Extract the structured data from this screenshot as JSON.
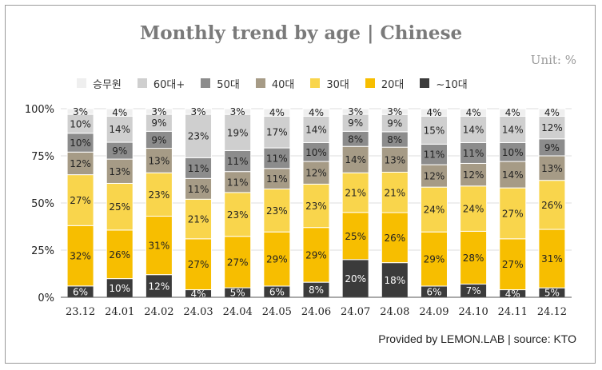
{
  "title": "Monthly trend by age | Chinese",
  "unit": "Unit: %",
  "source": "Provided by LEMON.LAB | source: KTO",
  "chart_data": {
    "type": "bar",
    "stacked": true,
    "percent": true,
    "categories": [
      "23.12",
      "24.01",
      "24.02",
      "24.03",
      "24.04",
      "24.05",
      "24.06",
      "24.07",
      "24.08",
      "24.09",
      "24.10",
      "24.11",
      "24.12"
    ],
    "ylim": [
      0,
      100
    ],
    "yticks": [
      "0%",
      "25%",
      "50%",
      "75%",
      "100%"
    ],
    "legend_position": "top",
    "series": [
      {
        "name": "~10대",
        "color": "#3b3b3b",
        "values": [
          6,
          10,
          12,
          4,
          5,
          6,
          8,
          20,
          18,
          6,
          7,
          4,
          5
        ]
      },
      {
        "name": "20대",
        "color": "#f7be00",
        "values": [
          32,
          26,
          31,
          27,
          27,
          29,
          29,
          25,
          26,
          29,
          28,
          27,
          31
        ]
      },
      {
        "name": "30대",
        "color": "#f9d54c",
        "values": [
          27,
          25,
          23,
          21,
          23,
          23,
          23,
          21,
          21,
          24,
          24,
          27,
          26
        ]
      },
      {
        "name": "40대",
        "color": "#a69b86",
        "values": [
          12,
          13,
          13,
          11,
          11,
          11,
          12,
          14,
          13,
          12,
          12,
          14,
          13
        ]
      },
      {
        "name": "50대",
        "color": "#8c8c8c",
        "values": [
          10,
          9,
          9,
          11,
          11,
          11,
          10,
          8,
          8,
          11,
          11,
          10,
          9
        ]
      },
      {
        "name": "60대+",
        "color": "#cfcfcf",
        "values": [
          10,
          14,
          9,
          23,
          19,
          17,
          14,
          9,
          9,
          15,
          14,
          14,
          12
        ]
      },
      {
        "name": "승무원",
        "color": "#efefef",
        "values": [
          3,
          4,
          3,
          3,
          3,
          4,
          4,
          3,
          3,
          4,
          4,
          4,
          4
        ]
      }
    ]
  }
}
